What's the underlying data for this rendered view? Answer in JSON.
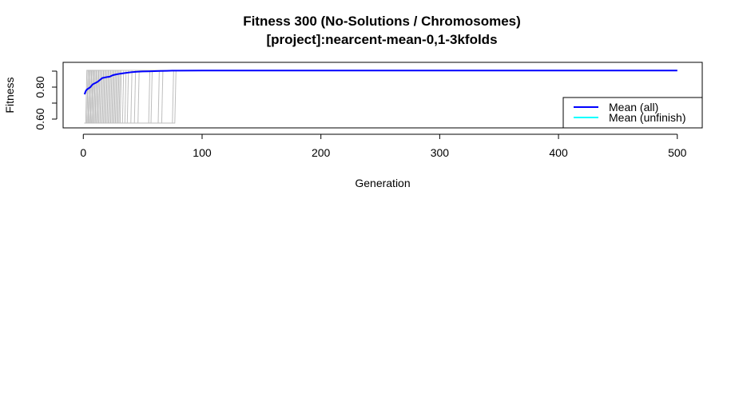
{
  "chart_data": {
    "type": "line",
    "title": "Fitness  300 (No-Solutions / Chromosomes)",
    "subtitle": "[project]:nearcent-mean-0,1-3kfolds",
    "xlabel": "Generation",
    "ylabel": "Fitness",
    "xlim": [
      -17,
      521
    ],
    "ylim": [
      0.545,
      0.955
    ],
    "x_ticks": [
      0,
      100,
      200,
      300,
      400,
      500
    ],
    "y_ticks": [
      0.6,
      0.7,
      0.8,
      0.9
    ],
    "y_tick_labels": [
      "0.60",
      "0.80"
    ],
    "grid": false,
    "legend_position": "bottom-right",
    "legend": [
      {
        "label": "Mean (all)",
        "color": "#0000ff"
      },
      {
        "label": "Mean (unfinish)",
        "color": "#00ffff"
      }
    ],
    "series": [
      {
        "name": "Mean (all)",
        "color": "#0000ff",
        "x": [
          1,
          2,
          3,
          4,
          5,
          6,
          7,
          8,
          10,
          12,
          14,
          16,
          18,
          20,
          22,
          25,
          28,
          31,
          35,
          40,
          45,
          50,
          55,
          60,
          65,
          70,
          75,
          80,
          100,
          200,
          300,
          400,
          500
        ],
        "y": [
          0.755,
          0.775,
          0.785,
          0.79,
          0.795,
          0.8,
          0.81,
          0.818,
          0.825,
          0.833,
          0.845,
          0.857,
          0.86,
          0.863,
          0.865,
          0.875,
          0.88,
          0.884,
          0.888,
          0.893,
          0.896,
          0.898,
          0.899,
          0.9,
          0.901,
          0.902,
          0.903,
          0.903,
          0.904,
          0.904,
          0.904,
          0.904,
          0.904
        ]
      },
      {
        "name": "Mean (unfinish)",
        "color": "#00ffff",
        "x": [],
        "y": []
      }
    ],
    "background_runs": {
      "color": "#bebebe",
      "low_value": 0.575,
      "high_value": 0.905,
      "switch_generations": [
        2,
        3,
        3,
        4,
        4,
        5,
        5,
        6,
        6,
        7,
        7,
        8,
        8,
        9,
        10,
        10,
        11,
        12,
        12,
        13,
        14,
        15,
        16,
        17,
        18,
        19,
        20,
        21,
        22,
        23,
        24,
        25,
        26,
        27,
        28,
        29,
        30,
        31,
        33,
        35,
        37,
        40,
        43,
        46,
        55,
        57,
        63,
        66,
        75,
        77
      ]
    }
  },
  "colors": {
    "axis": "#000000",
    "runs": "#bebebe",
    "mean_all": "#0000ff",
    "mean_unfinish": "#00ffff"
  }
}
